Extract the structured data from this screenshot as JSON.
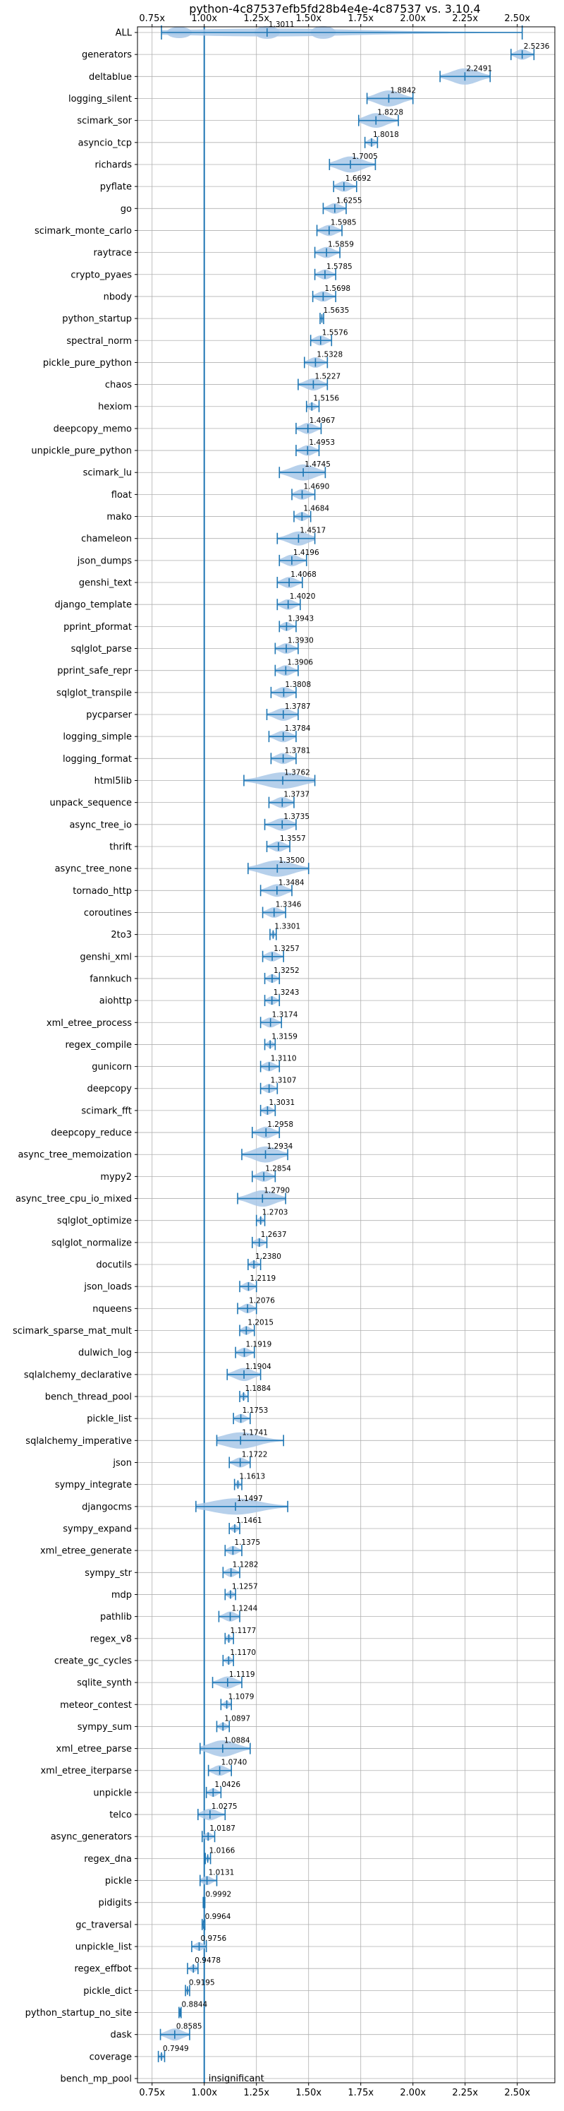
{
  "chart_data": {
    "type": "violin",
    "title": "python-4c87537efb5fd28b4e4e-4c87537 vs. 3.10.4",
    "xlim": [
      0.68,
      2.68
    ],
    "x_ticks": [
      0.75,
      1.0,
      1.25,
      1.5,
      1.75,
      2.0,
      2.25,
      2.5
    ],
    "x_tick_labels": [
      "0.75x",
      "1.00x",
      "1.25x",
      "1.50x",
      "1.75x",
      "2.00x",
      "2.25x",
      "2.50x"
    ],
    "grid": true,
    "reference_line": 1.0,
    "colors": {
      "violin": "#a9c8e8",
      "whisker": "#1f77b4",
      "reference": "#1f77b4",
      "grid": "#b0b0b0"
    },
    "annotation": "insignificant",
    "benchmarks": [
      {
        "name": "ALL",
        "value": 1.3011,
        "label": "1.3011",
        "min": 0.7949,
        "max": 2.5236
      },
      {
        "name": "generators",
        "value": 2.5236,
        "label": "2.5236",
        "min": 2.47,
        "max": 2.58
      },
      {
        "name": "deltablue",
        "value": 2.2491,
        "label": "2.2491",
        "min": 2.13,
        "max": 2.37
      },
      {
        "name": "logging_silent",
        "value": 1.8842,
        "label": "1.8842",
        "min": 1.78,
        "max": 2.0
      },
      {
        "name": "scimark_sor",
        "value": 1.8228,
        "label": "1.8228",
        "min": 1.74,
        "max": 1.93
      },
      {
        "name": "asyncio_tcp",
        "value": 1.8018,
        "label": "1.8018",
        "min": 1.77,
        "max": 1.83
      },
      {
        "name": "richards",
        "value": 1.7005,
        "label": "1.7005",
        "min": 1.6,
        "max": 1.82
      },
      {
        "name": "pyflate",
        "value": 1.6692,
        "label": "1.6692",
        "min": 1.62,
        "max": 1.73
      },
      {
        "name": "go",
        "value": 1.6255,
        "label": "1.6255",
        "min": 1.57,
        "max": 1.68
      },
      {
        "name": "scimark_monte_carlo",
        "value": 1.5985,
        "label": "1.5985",
        "min": 1.54,
        "max": 1.66
      },
      {
        "name": "raytrace",
        "value": 1.5859,
        "label": "1.5859",
        "min": 1.53,
        "max": 1.65
      },
      {
        "name": "crypto_pyaes",
        "value": 1.5785,
        "label": "1.5785",
        "min": 1.53,
        "max": 1.63
      },
      {
        "name": "nbody",
        "value": 1.5698,
        "label": "1.5698",
        "min": 1.52,
        "max": 1.63
      },
      {
        "name": "python_startup",
        "value": 1.5635,
        "label": "1.5635",
        "min": 1.555,
        "max": 1.572
      },
      {
        "name": "spectral_norm",
        "value": 1.5576,
        "label": "1.5576",
        "min": 1.51,
        "max": 1.61
      },
      {
        "name": "pickle_pure_python",
        "value": 1.5328,
        "label": "1.5328",
        "min": 1.48,
        "max": 1.59
      },
      {
        "name": "chaos",
        "value": 1.5227,
        "label": "1.5227",
        "min": 1.45,
        "max": 1.59
      },
      {
        "name": "hexiom",
        "value": 1.5156,
        "label": "1.5156",
        "min": 1.49,
        "max": 1.55
      },
      {
        "name": "deepcopy_memo",
        "value": 1.4967,
        "label": "1.4967",
        "min": 1.44,
        "max": 1.56
      },
      {
        "name": "unpickle_pure_python",
        "value": 1.4953,
        "label": "1.4953",
        "min": 1.44,
        "max": 1.55
      },
      {
        "name": "scimark_lu",
        "value": 1.4745,
        "label": "1.4745",
        "min": 1.36,
        "max": 1.58
      },
      {
        "name": "float",
        "value": 1.469,
        "label": "1.4690",
        "min": 1.42,
        "max": 1.53
      },
      {
        "name": "mako",
        "value": 1.4684,
        "label": "1.4684",
        "min": 1.43,
        "max": 1.51
      },
      {
        "name": "chameleon",
        "value": 1.4517,
        "label": "1.4517",
        "min": 1.35,
        "max": 1.53
      },
      {
        "name": "json_dumps",
        "value": 1.4196,
        "label": "1.4196",
        "min": 1.36,
        "max": 1.49
      },
      {
        "name": "genshi_text",
        "value": 1.4068,
        "label": "1.4068",
        "min": 1.35,
        "max": 1.47
      },
      {
        "name": "django_template",
        "value": 1.402,
        "label": "1.4020",
        "min": 1.35,
        "max": 1.46
      },
      {
        "name": "pprint_pformat",
        "value": 1.3943,
        "label": "1.3943",
        "min": 1.36,
        "max": 1.44
      },
      {
        "name": "sqlglot_parse",
        "value": 1.393,
        "label": "1.3930",
        "min": 1.34,
        "max": 1.45
      },
      {
        "name": "pprint_safe_repr",
        "value": 1.3906,
        "label": "1.3906",
        "min": 1.34,
        "max": 1.45
      },
      {
        "name": "sqlglot_transpile",
        "value": 1.3808,
        "label": "1.3808",
        "min": 1.32,
        "max": 1.44
      },
      {
        "name": "pycparser",
        "value": 1.3787,
        "label": "1.3787",
        "min": 1.3,
        "max": 1.45
      },
      {
        "name": "logging_simple",
        "value": 1.3784,
        "label": "1.3784",
        "min": 1.31,
        "max": 1.44
      },
      {
        "name": "logging_format",
        "value": 1.3781,
        "label": "1.3781",
        "min": 1.32,
        "max": 1.44
      },
      {
        "name": "html5lib",
        "value": 1.3762,
        "label": "1.3762",
        "min": 1.19,
        "max": 1.53
      },
      {
        "name": "unpack_sequence",
        "value": 1.3737,
        "label": "1.3737",
        "min": 1.31,
        "max": 1.43
      },
      {
        "name": "async_tree_io",
        "value": 1.3735,
        "label": "1.3735",
        "min": 1.29,
        "max": 1.44
      },
      {
        "name": "thrift",
        "value": 1.3557,
        "label": "1.3557",
        "min": 1.3,
        "max": 1.41
      },
      {
        "name": "async_tree_none",
        "value": 1.35,
        "label": "1.3500",
        "min": 1.21,
        "max": 1.5
      },
      {
        "name": "tornado_http",
        "value": 1.3484,
        "label": "1.3484",
        "min": 1.27,
        "max": 1.42
      },
      {
        "name": "coroutines",
        "value": 1.3346,
        "label": "1.3346",
        "min": 1.28,
        "max": 1.39
      },
      {
        "name": "2to3",
        "value": 1.3301,
        "label": "1.3301",
        "min": 1.315,
        "max": 1.345
      },
      {
        "name": "genshi_xml",
        "value": 1.3257,
        "label": "1.3257",
        "min": 1.28,
        "max": 1.38
      },
      {
        "name": "fannkuch",
        "value": 1.3252,
        "label": "1.3252",
        "min": 1.29,
        "max": 1.36
      },
      {
        "name": "aiohttp",
        "value": 1.3243,
        "label": "1.3243",
        "min": 1.29,
        "max": 1.36
      },
      {
        "name": "xml_etree_process",
        "value": 1.3174,
        "label": "1.3174",
        "min": 1.27,
        "max": 1.37
      },
      {
        "name": "regex_compile",
        "value": 1.3159,
        "label": "1.3159",
        "min": 1.29,
        "max": 1.34
      },
      {
        "name": "gunicorn",
        "value": 1.311,
        "label": "1.3110",
        "min": 1.27,
        "max": 1.36
      },
      {
        "name": "deepcopy",
        "value": 1.3107,
        "label": "1.3107",
        "min": 1.27,
        "max": 1.35
      },
      {
        "name": "scimark_fft",
        "value": 1.3031,
        "label": "1.3031",
        "min": 1.27,
        "max": 1.34
      },
      {
        "name": "deepcopy_reduce",
        "value": 1.2958,
        "label": "1.2958",
        "min": 1.23,
        "max": 1.36
      },
      {
        "name": "async_tree_memoization",
        "value": 1.2934,
        "label": "1.2934",
        "min": 1.18,
        "max": 1.4
      },
      {
        "name": "mypy2",
        "value": 1.2854,
        "label": "1.2854",
        "min": 1.23,
        "max": 1.34
      },
      {
        "name": "async_tree_cpu_io_mixed",
        "value": 1.279,
        "label": "1.2790",
        "min": 1.16,
        "max": 1.39
      },
      {
        "name": "sqlglot_optimize",
        "value": 1.2703,
        "label": "1.2703",
        "min": 1.25,
        "max": 1.29
      },
      {
        "name": "sqlglot_normalize",
        "value": 1.2637,
        "label": "1.2637",
        "min": 1.23,
        "max": 1.3
      },
      {
        "name": "docutils",
        "value": 1.238,
        "label": "1.2380",
        "min": 1.21,
        "max": 1.27
      },
      {
        "name": "json_loads",
        "value": 1.2119,
        "label": "1.2119",
        "min": 1.17,
        "max": 1.25
      },
      {
        "name": "nqueens",
        "value": 1.2076,
        "label": "1.2076",
        "min": 1.16,
        "max": 1.25
      },
      {
        "name": "scimark_sparse_mat_mult",
        "value": 1.2015,
        "label": "1.2015",
        "min": 1.17,
        "max": 1.24
      },
      {
        "name": "dulwich_log",
        "value": 1.1919,
        "label": "1.1919",
        "min": 1.15,
        "max": 1.24
      },
      {
        "name": "sqlalchemy_declarative",
        "value": 1.1904,
        "label": "1.1904",
        "min": 1.11,
        "max": 1.27
      },
      {
        "name": "bench_thread_pool",
        "value": 1.1884,
        "label": "1.1884",
        "min": 1.17,
        "max": 1.21
      },
      {
        "name": "pickle_list",
        "value": 1.1753,
        "label": "1.1753",
        "min": 1.14,
        "max": 1.22
      },
      {
        "name": "sqlalchemy_imperative",
        "value": 1.1741,
        "label": "1.1741",
        "min": 1.06,
        "max": 1.38
      },
      {
        "name": "json",
        "value": 1.1722,
        "label": "1.1722",
        "min": 1.12,
        "max": 1.22
      },
      {
        "name": "sympy_integrate",
        "value": 1.1613,
        "label": "1.1613",
        "min": 1.145,
        "max": 1.18
      },
      {
        "name": "djangocms",
        "value": 1.1497,
        "label": "1.1497",
        "min": 0.96,
        "max": 1.4
      },
      {
        "name": "sympy_expand",
        "value": 1.1461,
        "label": "1.1461",
        "min": 1.12,
        "max": 1.17
      },
      {
        "name": "xml_etree_generate",
        "value": 1.1375,
        "label": "1.1375",
        "min": 1.1,
        "max": 1.18
      },
      {
        "name": "sympy_str",
        "value": 1.1282,
        "label": "1.1282",
        "min": 1.09,
        "max": 1.17
      },
      {
        "name": "mdp",
        "value": 1.1257,
        "label": "1.1257",
        "min": 1.1,
        "max": 1.15
      },
      {
        "name": "pathlib",
        "value": 1.1244,
        "label": "1.1244",
        "min": 1.07,
        "max": 1.17
      },
      {
        "name": "regex_v8",
        "value": 1.1177,
        "label": "1.1177",
        "min": 1.1,
        "max": 1.14
      },
      {
        "name": "create_gc_cycles",
        "value": 1.117,
        "label": "1.1170",
        "min": 1.09,
        "max": 1.14
      },
      {
        "name": "sqlite_synth",
        "value": 1.1119,
        "label": "1.1119",
        "min": 1.04,
        "max": 1.18
      },
      {
        "name": "meteor_contest",
        "value": 1.1079,
        "label": "1.1079",
        "min": 1.08,
        "max": 1.13
      },
      {
        "name": "sympy_sum",
        "value": 1.0897,
        "label": "1.0897",
        "min": 1.06,
        "max": 1.12
      },
      {
        "name": "xml_etree_parse",
        "value": 1.0884,
        "label": "1.0884",
        "min": 0.98,
        "max": 1.22
      },
      {
        "name": "xml_etree_iterparse",
        "value": 1.074,
        "label": "1.0740",
        "min": 1.02,
        "max": 1.13
      },
      {
        "name": "unpickle",
        "value": 1.0426,
        "label": "1.0426",
        "min": 1.01,
        "max": 1.08
      },
      {
        "name": "telco",
        "value": 1.0275,
        "label": "1.0275",
        "min": 0.97,
        "max": 1.1
      },
      {
        "name": "async_generators",
        "value": 1.0187,
        "label": "1.0187",
        "min": 0.99,
        "max": 1.05
      },
      {
        "name": "regex_dna",
        "value": 1.0166,
        "label": "1.0166",
        "min": 1.005,
        "max": 1.03
      },
      {
        "name": "pickle",
        "value": 1.0131,
        "label": "1.0131",
        "min": 0.98,
        "max": 1.06
      },
      {
        "name": "pidigits",
        "value": 0.9992,
        "label": "0.9992",
        "min": 0.995,
        "max": 1.003
      },
      {
        "name": "gc_traversal",
        "value": 0.9964,
        "label": "0.9964",
        "min": 0.99,
        "max": 1.003
      },
      {
        "name": "unpickle_list",
        "value": 0.9756,
        "label": "0.9756",
        "min": 0.94,
        "max": 1.01
      },
      {
        "name": "regex_effbot",
        "value": 0.9478,
        "label": "0.9478",
        "min": 0.92,
        "max": 0.97
      },
      {
        "name": "pickle_dict",
        "value": 0.9195,
        "label": "0.9195",
        "min": 0.91,
        "max": 0.93
      },
      {
        "name": "python_startup_no_site",
        "value": 0.8844,
        "label": "0.8844",
        "min": 0.879,
        "max": 0.889
      },
      {
        "name": "dask",
        "value": 0.8585,
        "label": "0.8585",
        "min": 0.79,
        "max": 0.93
      },
      {
        "name": "coverage",
        "value": 0.7949,
        "label": "0.7949",
        "min": 0.78,
        "max": 0.81
      },
      {
        "name": "bench_mp_pool",
        "value": null,
        "label": "insignificant",
        "min": null,
        "max": null
      }
    ]
  }
}
